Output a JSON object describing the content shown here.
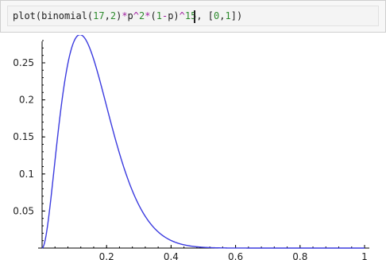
{
  "cell": {
    "code_parts": [
      {
        "t": "plot(binomial(",
        "c": "text"
      },
      {
        "t": "17",
        "c": "num"
      },
      {
        "t": ",",
        "c": "text"
      },
      {
        "t": "2",
        "c": "num"
      },
      {
        "t": ")",
        "c": "text"
      },
      {
        "t": "*",
        "c": "op"
      },
      {
        "t": "p",
        "c": "text"
      },
      {
        "t": "^",
        "c": "op"
      },
      {
        "t": "2",
        "c": "num"
      },
      {
        "t": "*",
        "c": "op"
      },
      {
        "t": "(",
        "c": "text"
      },
      {
        "t": "1",
        "c": "num"
      },
      {
        "t": "-",
        "c": "op"
      },
      {
        "t": "p",
        "c": "text"
      },
      {
        "t": ")",
        "c": "text"
      },
      {
        "t": "^",
        "c": "op"
      },
      {
        "t": "15",
        "c": "num"
      },
      {
        "t": ", ",
        "c": "text"
      },
      {
        "t": "[",
        "c": "text"
      },
      {
        "t": "0",
        "c": "num"
      },
      {
        "t": ",",
        "c": "text"
      },
      {
        "t": "1",
        "c": "num"
      },
      {
        "t": "])",
        "c": "text"
      }
    ]
  },
  "colors": {
    "curve": "#3b3bdf",
    "axis": "#000000",
    "number": "#2e8b2e",
    "operator": "#a020a0"
  },
  "chart_data": {
    "type": "line",
    "title": "",
    "xlabel": "",
    "ylabel": "",
    "function": "binomial(17,2)*p^2*(1-p)^15",
    "xlim": [
      0,
      1
    ],
    "ylim": [
      0,
      0.29
    ],
    "x_ticks": [
      0.2,
      0.4,
      0.6,
      0.8,
      1
    ],
    "x_tick_labels": [
      "0.2",
      "0.4",
      "0.6",
      "0.8",
      "1"
    ],
    "y_ticks": [
      0.05,
      0.1,
      0.15,
      0.2,
      0.25
    ],
    "y_tick_labels": [
      "0.05",
      "0.1",
      "0.15",
      "0.2",
      "0.25"
    ],
    "series": [
      {
        "x": [
          0,
          0.02,
          0.04,
          0.06,
          0.08,
          0.1,
          0.12,
          0.14,
          0.16,
          0.18,
          0.2,
          0.25,
          0.3,
          0.35,
          0.4,
          0.45,
          0.5,
          0.6,
          0.7,
          0.8,
          0.9,
          1.0
        ],
        "values": [
          0,
          0.0402,
          0.118,
          0.1924,
          0.245,
          0.2745,
          0.2848,
          0.2804,
          0.265,
          0.2425,
          0.2153,
          0.1461,
          0.0887,
          0.0494,
          0.0253,
          0.0118,
          0.005,
          0.0006,
          3e-05,
          0.0,
          0.0,
          0.0
        ]
      }
    ]
  }
}
